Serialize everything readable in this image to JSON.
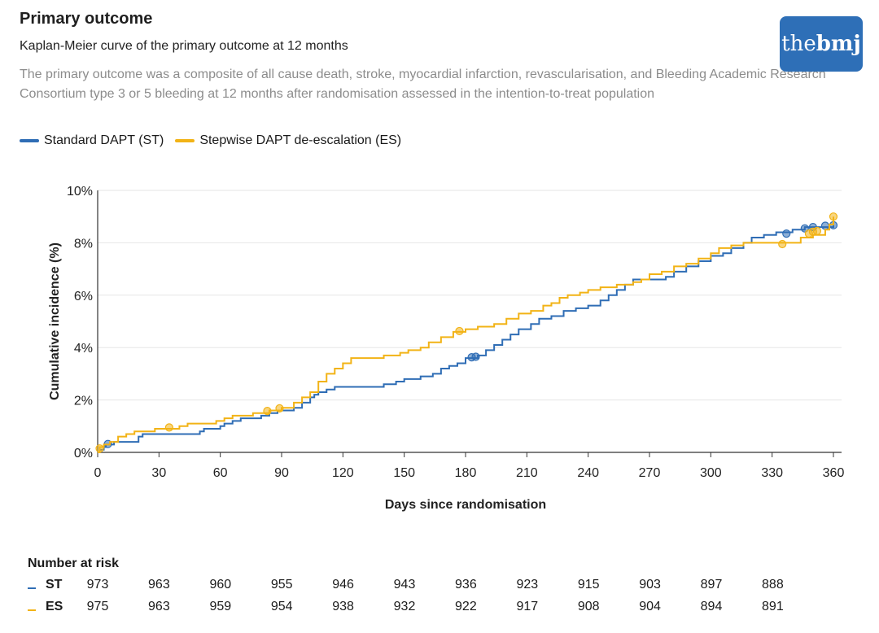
{
  "header": {
    "title": "Primary outcome",
    "subtitle": "Kaplan-Meier curve of the primary outcome at 12 months",
    "description": "The primary outcome was a composite of all cause death, stroke, myocardial infarction, revascularisation, and Bleeding Academic Research Consortium type 3 or 5 bleeding at 12 months after randomisation assessed in the intention-to-treat population",
    "logo_the": "the",
    "logo_bmj": "bmj"
  },
  "legend": [
    {
      "label": "Standard DAPT (ST)",
      "color": "#2f6db5"
    },
    {
      "label": "Stepwise DAPT de-escalation (ES)",
      "color": "#f2b316"
    }
  ],
  "chart_data": {
    "type": "line",
    "title": "",
    "xlabel": "Days since randomisation",
    "ylabel": "Cumulative incidence (%)",
    "xlim": [
      0,
      360
    ],
    "ylim": [
      0,
      10
    ],
    "x_ticks": [
      0,
      30,
      60,
      90,
      120,
      150,
      180,
      210,
      240,
      270,
      300,
      330,
      360
    ],
    "y_ticks": [
      0,
      2,
      4,
      6,
      8,
      10
    ],
    "y_tick_labels": [
      "0%",
      "2%",
      "4%",
      "6%",
      "8%",
      "10%"
    ],
    "grid": "horizontal",
    "series": [
      {
        "name": "Standard DAPT (ST)",
        "color": "#2f6db5",
        "step": true,
        "points": [
          [
            0,
            0
          ],
          [
            1,
            0.1
          ],
          [
            3,
            0.2
          ],
          [
            4,
            0.3
          ],
          [
            8,
            0.4
          ],
          [
            18,
            0.4
          ],
          [
            20,
            0.6
          ],
          [
            22,
            0.7
          ],
          [
            40,
            0.7
          ],
          [
            50,
            0.8
          ],
          [
            52,
            0.9
          ],
          [
            60,
            1.0
          ],
          [
            62,
            1.1
          ],
          [
            66,
            1.2
          ],
          [
            70,
            1.3
          ],
          [
            80,
            1.4
          ],
          [
            84,
            1.5
          ],
          [
            88,
            1.6
          ],
          [
            96,
            1.7
          ],
          [
            100,
            1.9
          ],
          [
            104,
            2.1
          ],
          [
            106,
            2.2
          ],
          [
            108,
            2.3
          ],
          [
            112,
            2.4
          ],
          [
            116,
            2.5
          ],
          [
            140,
            2.6
          ],
          [
            146,
            2.7
          ],
          [
            150,
            2.8
          ],
          [
            158,
            2.9
          ],
          [
            164,
            3.0
          ],
          [
            168,
            3.2
          ],
          [
            172,
            3.3
          ],
          [
            176,
            3.4
          ],
          [
            180,
            3.6
          ],
          [
            186,
            3.7
          ],
          [
            190,
            3.9
          ],
          [
            194,
            4.1
          ],
          [
            198,
            4.3
          ],
          [
            202,
            4.5
          ],
          [
            206,
            4.7
          ],
          [
            212,
            4.9
          ],
          [
            216,
            5.1
          ],
          [
            222,
            5.2
          ],
          [
            228,
            5.4
          ],
          [
            234,
            5.5
          ],
          [
            240,
            5.6
          ],
          [
            246,
            5.8
          ],
          [
            250,
            6.0
          ],
          [
            254,
            6.2
          ],
          [
            258,
            6.4
          ],
          [
            262,
            6.6
          ],
          [
            278,
            6.7
          ],
          [
            282,
            6.9
          ],
          [
            288,
            7.1
          ],
          [
            294,
            7.3
          ],
          [
            300,
            7.5
          ],
          [
            306,
            7.6
          ],
          [
            310,
            7.8
          ],
          [
            316,
            8.0
          ],
          [
            320,
            8.2
          ],
          [
            326,
            8.3
          ],
          [
            332,
            8.4
          ],
          [
            340,
            8.5
          ],
          [
            346,
            8.6
          ],
          [
            360,
            8.7
          ]
        ],
        "censor": [
          [
            5,
            0.32
          ],
          [
            183,
            3.63
          ],
          [
            185,
            3.65
          ],
          [
            337,
            8.35
          ],
          [
            346,
            8.55
          ],
          [
            350,
            8.6
          ],
          [
            356,
            8.65
          ],
          [
            360,
            8.67
          ]
        ]
      },
      {
        "name": "Stepwise DAPT de-escalation (ES)",
        "color": "#f2b316",
        "step": true,
        "points": [
          [
            0,
            0
          ],
          [
            1,
            0.2
          ],
          [
            3,
            0.3
          ],
          [
            6,
            0.4
          ],
          [
            10,
            0.6
          ],
          [
            14,
            0.7
          ],
          [
            18,
            0.8
          ],
          [
            28,
            0.9
          ],
          [
            40,
            1.0
          ],
          [
            44,
            1.1
          ],
          [
            58,
            1.2
          ],
          [
            62,
            1.3
          ],
          [
            66,
            1.4
          ],
          [
            76,
            1.5
          ],
          [
            84,
            1.6
          ],
          [
            90,
            1.7
          ],
          [
            96,
            1.9
          ],
          [
            100,
            2.1
          ],
          [
            104,
            2.3
          ],
          [
            108,
            2.7
          ],
          [
            112,
            3.0
          ],
          [
            116,
            3.2
          ],
          [
            120,
            3.4
          ],
          [
            124,
            3.6
          ],
          [
            140,
            3.7
          ],
          [
            148,
            3.8
          ],
          [
            152,
            3.9
          ],
          [
            158,
            4.0
          ],
          [
            162,
            4.2
          ],
          [
            168,
            4.4
          ],
          [
            174,
            4.6
          ],
          [
            180,
            4.7
          ],
          [
            186,
            4.8
          ],
          [
            194,
            4.9
          ],
          [
            200,
            5.1
          ],
          [
            206,
            5.3
          ],
          [
            212,
            5.4
          ],
          [
            218,
            5.6
          ],
          [
            222,
            5.7
          ],
          [
            226,
            5.9
          ],
          [
            230,
            6.0
          ],
          [
            236,
            6.1
          ],
          [
            240,
            6.2
          ],
          [
            246,
            6.3
          ],
          [
            254,
            6.4
          ],
          [
            262,
            6.5
          ],
          [
            266,
            6.6
          ],
          [
            270,
            6.8
          ],
          [
            276,
            6.9
          ],
          [
            282,
            7.1
          ],
          [
            288,
            7.2
          ],
          [
            294,
            7.4
          ],
          [
            300,
            7.6
          ],
          [
            304,
            7.8
          ],
          [
            310,
            7.9
          ],
          [
            316,
            8.0
          ],
          [
            336,
            8.0
          ],
          [
            344,
            8.2
          ],
          [
            350,
            8.3
          ],
          [
            356,
            8.5
          ],
          [
            358,
            8.7
          ],
          [
            360,
            9.0
          ]
        ],
        "censor": [
          [
            1,
            0.15
          ],
          [
            35,
            0.95
          ],
          [
            83,
            1.58
          ],
          [
            89,
            1.68
          ],
          [
            177,
            4.63
          ],
          [
            335,
            7.95
          ],
          [
            348,
            8.35
          ],
          [
            350,
            8.42
          ],
          [
            352,
            8.45
          ],
          [
            360,
            9.0
          ]
        ]
      }
    ]
  },
  "risk_table": {
    "title": "Number at risk",
    "days": [
      0,
      30,
      60,
      90,
      120,
      150,
      180,
      210,
      240,
      270,
      300,
      330
    ],
    "rows": [
      {
        "label": "ST",
        "color": "#2f6db5",
        "values": [
          "973",
          "963",
          "960",
          "955",
          "946",
          "943",
          "936",
          "923",
          "915",
          "903",
          "897",
          "888"
        ]
      },
      {
        "label": "ES",
        "color": "#f2b316",
        "values": [
          "975",
          "963",
          "959",
          "954",
          "938",
          "932",
          "922",
          "917",
          "908",
          "904",
          "894",
          "891"
        ]
      }
    ]
  }
}
